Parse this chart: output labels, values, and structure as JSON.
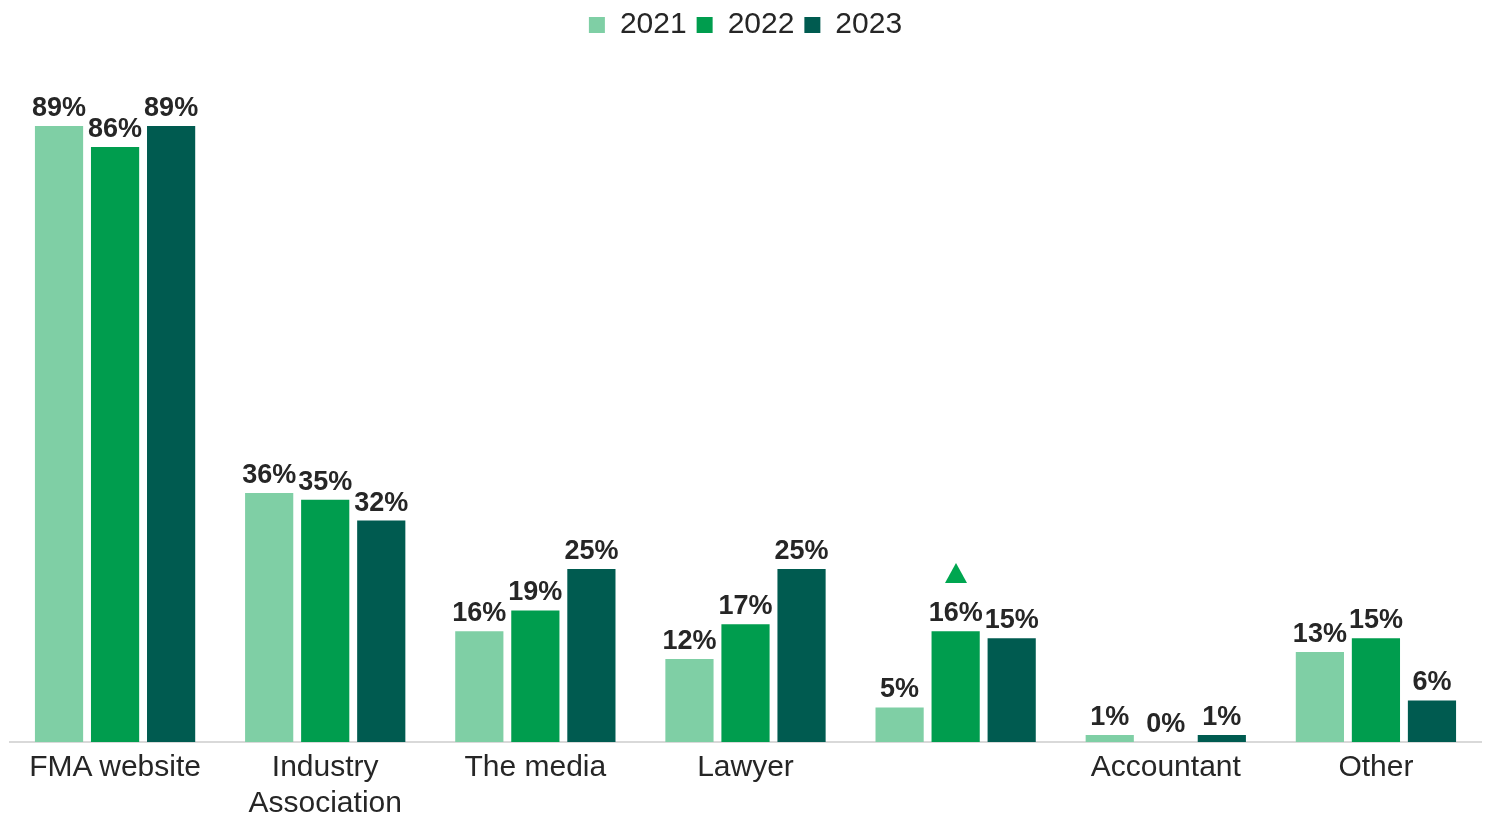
{
  "chart_data": {
    "type": "bar",
    "categories": [
      "FMA website",
      "Industry Association",
      "The media",
      "Lawyer",
      null,
      "Accountant",
      "Other"
    ],
    "series": [
      {
        "name": "2021",
        "color": "#7fcfa5",
        "values": [
          89,
          36,
          16,
          12,
          5,
          1,
          13
        ],
        "value_labels": [
          "89%",
          "36%",
          "16%",
          "12%",
          "5%",
          "1%",
          "13%"
        ]
      },
      {
        "name": "2022",
        "color": "#009d4e",
        "values": [
          86,
          35,
          19,
          17,
          16,
          0,
          15
        ],
        "value_labels": [
          "86%",
          "35%",
          "19%",
          "17%",
          "16%",
          "0%",
          "15%"
        ]
      },
      {
        "name": "2023",
        "color": "#005b50",
        "values": [
          89,
          32,
          25,
          25,
          15,
          1,
          6
        ],
        "value_labels": [
          "89%",
          "32%",
          "25%",
          "25%",
          "15%",
          "1%",
          "6%"
        ]
      }
    ],
    "legend": "top",
    "grid": false
  }
}
